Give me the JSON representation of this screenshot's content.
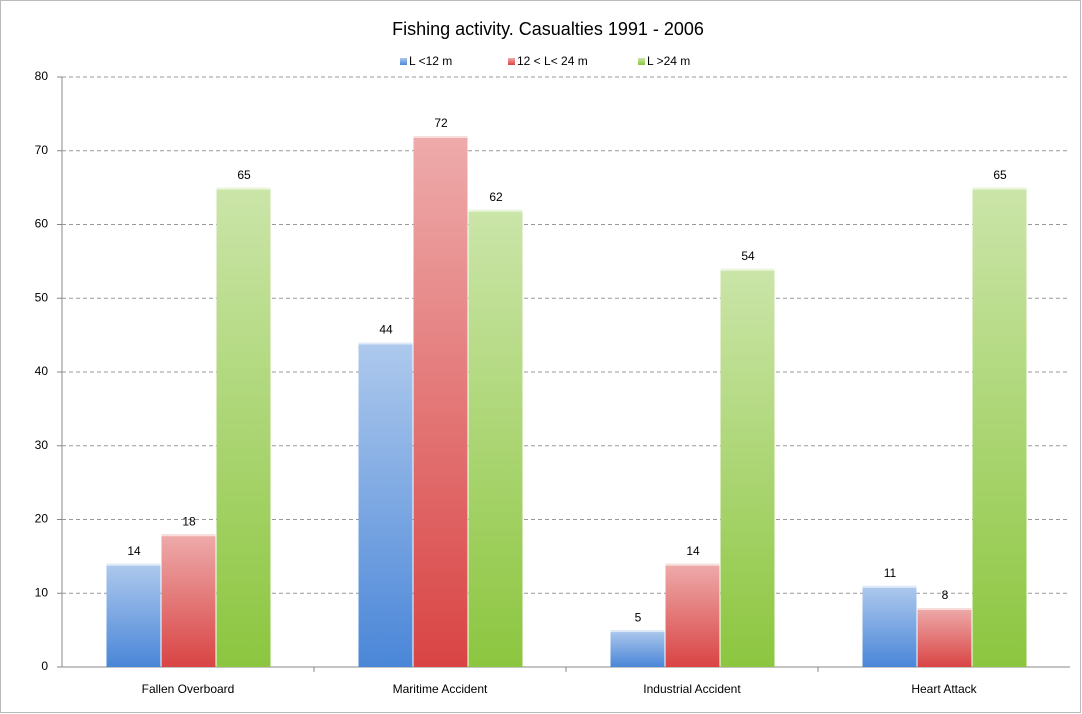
{
  "chart_data": {
    "type": "bar",
    "title": "Fishing activity. Casualties 1991 - 2006",
    "categories": [
      "Fallen Overboard",
      "Maritime Accident",
      "Industrial Accident",
      "Heart Attack"
    ],
    "series": [
      {
        "name": "L <12 m",
        "color": "#4a86d8",
        "values": [
          14,
          44,
          5,
          11
        ]
      },
      {
        "name": "12 < L< 24 m",
        "color": "#d94444",
        "values": [
          18,
          72,
          14,
          8
        ]
      },
      {
        "name": "L >24 m",
        "color": "#8cc63f",
        "values": [
          65,
          62,
          54,
          65
        ]
      }
    ],
    "ylim": [
      0,
      80
    ],
    "yticks": [
      0,
      10,
      20,
      30,
      40,
      50,
      60,
      70,
      80
    ],
    "grid": true,
    "legend": "top"
  }
}
